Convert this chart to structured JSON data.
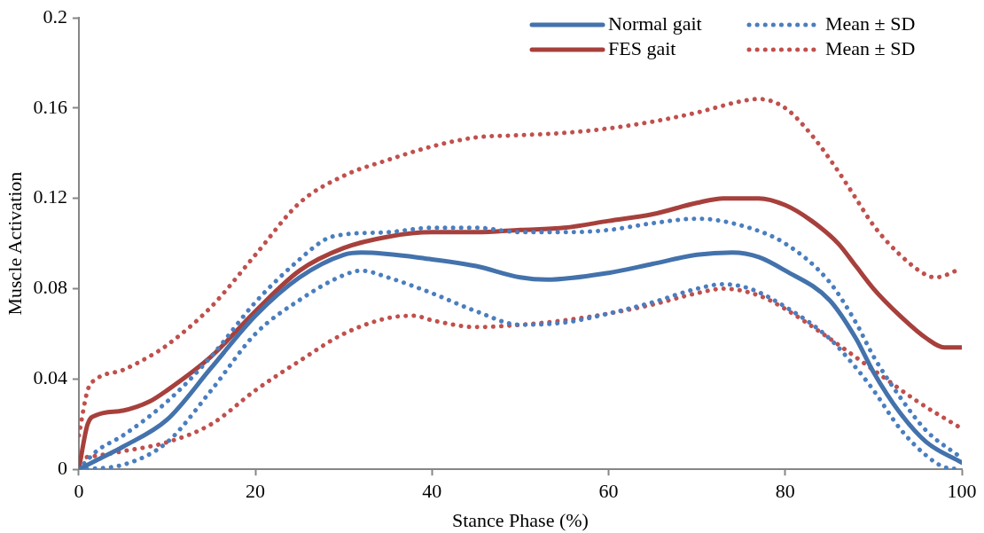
{
  "chart_data": {
    "type": "line",
    "xlabel": "Stance Phase (%)",
    "ylabel": "Muscle Activation",
    "xlim": [
      0,
      100
    ],
    "xticks": [
      0,
      20,
      40,
      60,
      80,
      100
    ],
    "ylim": [
      0,
      0.2
    ],
    "yticks": [
      0,
      0.04,
      0.08,
      0.12,
      0.16,
      0.2
    ],
    "grid": false,
    "legend": "top right",
    "marker": "none",
    "series": [
      {
        "name": "Normal gait",
        "color": "#4372ac",
        "line_style": "solid",
        "x": [
          0,
          2,
          5,
          10,
          15,
          20,
          25,
          30,
          32,
          40,
          45,
          50,
          53,
          60,
          65,
          70,
          74,
          77,
          80,
          85,
          88,
          90,
          93,
          96,
          100
        ],
        "values": [
          0,
          0.004,
          0.01,
          0.022,
          0.045,
          0.068,
          0.085,
          0.095,
          0.096,
          0.093,
          0.09,
          0.085,
          0.084,
          0.087,
          0.091,
          0.095,
          0.096,
          0.094,
          0.088,
          0.075,
          0.058,
          0.043,
          0.025,
          0.012,
          0.003
        ]
      },
      {
        "name": "Mean ± SD",
        "color": "#4a7ebf",
        "line_style": "dotted",
        "x": [
          0,
          2,
          5,
          10,
          15,
          20,
          25,
          28,
          30,
          35,
          40,
          45,
          50,
          55,
          60,
          65,
          70,
          75,
          80,
          85,
          88,
          90,
          93,
          96,
          100
        ],
        "values": [
          0,
          0.008,
          0.015,
          0.03,
          0.05,
          0.074,
          0.093,
          0.102,
          0.104,
          0.105,
          0.107,
          0.107,
          0.105,
          0.105,
          0.106,
          0.109,
          0.111,
          0.108,
          0.1,
          0.083,
          0.065,
          0.05,
          0.032,
          0.017,
          0.005
        ]
      },
      {
        "name": "FES gait",
        "color": "#a7403c",
        "line_style": "solid",
        "x": [
          0,
          1,
          2,
          5,
          8,
          10,
          15,
          20,
          25,
          30,
          35,
          40,
          45,
          50,
          55,
          60,
          65,
          70,
          73,
          77,
          80,
          83,
          86,
          88,
          90,
          93,
          96,
          98,
          100
        ],
        "values": [
          0,
          0.02,
          0.024,
          0.026,
          0.03,
          0.035,
          0.05,
          0.07,
          0.088,
          0.098,
          0.103,
          0.105,
          0.105,
          0.106,
          0.107,
          0.11,
          0.113,
          0.118,
          0.12,
          0.12,
          0.117,
          0.11,
          0.1,
          0.09,
          0.08,
          0.068,
          0.058,
          0.054,
          0.054
        ]
      },
      {
        "name": "Mean ± SD",
        "color": "#c0504d",
        "line_style": "dotted",
        "x": [
          0,
          1,
          2,
          5,
          8,
          10,
          15,
          20,
          25,
          30,
          35,
          40,
          45,
          50,
          55,
          60,
          65,
          70,
          75,
          77,
          80,
          83,
          86,
          88,
          90,
          93,
          96,
          97,
          100
        ],
        "values": [
          0.015,
          0.035,
          0.04,
          0.044,
          0.05,
          0.055,
          0.072,
          0.095,
          0.118,
          0.13,
          0.137,
          0.143,
          0.147,
          0.148,
          0.149,
          0.151,
          0.154,
          0.158,
          0.163,
          0.164,
          0.16,
          0.148,
          0.132,
          0.12,
          0.108,
          0.095,
          0.086,
          0.085,
          0.089
        ]
      },
      {
        "color": "#4a7ebf",
        "line_style": "dotted",
        "x": [
          0,
          5,
          10,
          15,
          20,
          25,
          30,
          32,
          35,
          40,
          45,
          50,
          55,
          60,
          65,
          70,
          73,
          76,
          80,
          85,
          88,
          90,
          93,
          96,
          98,
          100
        ],
        "values": [
          0,
          0.002,
          0.012,
          0.035,
          0.06,
          0.075,
          0.086,
          0.088,
          0.085,
          0.078,
          0.07,
          0.064,
          0.065,
          0.069,
          0.074,
          0.08,
          0.082,
          0.08,
          0.072,
          0.058,
          0.045,
          0.035,
          0.018,
          0.006,
          0.001,
          0
        ]
      },
      {
        "color": "#c0504d",
        "line_style": "dotted",
        "x": [
          0,
          2,
          5,
          10,
          15,
          20,
          25,
          30,
          35,
          38,
          40,
          45,
          50,
          55,
          60,
          65,
          70,
          73,
          77,
          80,
          85,
          90,
          95,
          100
        ],
        "values": [
          0.005,
          0.006,
          0.008,
          0.012,
          0.02,
          0.035,
          0.048,
          0.06,
          0.067,
          0.068,
          0.066,
          0.063,
          0.064,
          0.066,
          0.069,
          0.073,
          0.078,
          0.08,
          0.077,
          0.071,
          0.058,
          0.044,
          0.03,
          0.018
        ]
      }
    ]
  }
}
